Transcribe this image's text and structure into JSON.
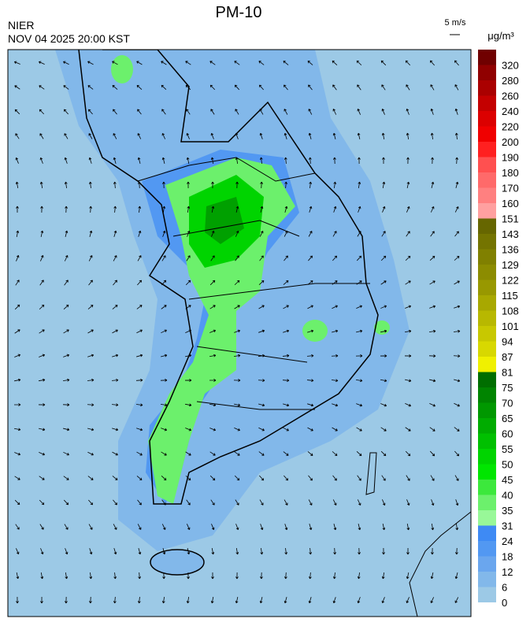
{
  "header": {
    "title": "PM-10",
    "agency": "NIER",
    "timestamp": "NOV 04 2025 20:00 KST",
    "wind_scale": "5 m/s",
    "unit": "μg/m³"
  },
  "colorbar": {
    "levels": [
      0,
      6,
      12,
      18,
      24,
      31,
      35,
      40,
      45,
      50,
      55,
      60,
      65,
      70,
      75,
      81,
      87,
      94,
      101,
      108,
      115,
      122,
      129,
      136,
      143,
      151,
      160,
      170,
      180,
      190,
      200,
      220,
      240,
      260,
      280,
      320
    ],
    "colors": [
      "#9cc9e6",
      "#82b8ea",
      "#6aa6ee",
      "#5298f2",
      "#3e8af4",
      "#98f898",
      "#6cf06c",
      "#3ce83c",
      "#00e600",
      "#00d400",
      "#00c000",
      "#00ac00",
      "#009800",
      "#008400",
      "#006e00",
      "#f0f000",
      "#d8d800",
      "#c8c800",
      "#b8b800",
      "#a8a800",
      "#989800",
      "#8c8c00",
      "#808000",
      "#747400",
      "#666600",
      "#ffa0a0",
      "#ff8080",
      "#ff6a6a",
      "#ff5050",
      "#ff2020",
      "#f00000",
      "#dc0000",
      "#c40000",
      "#aa0000",
      "#900000",
      "#700000"
    ]
  }
}
